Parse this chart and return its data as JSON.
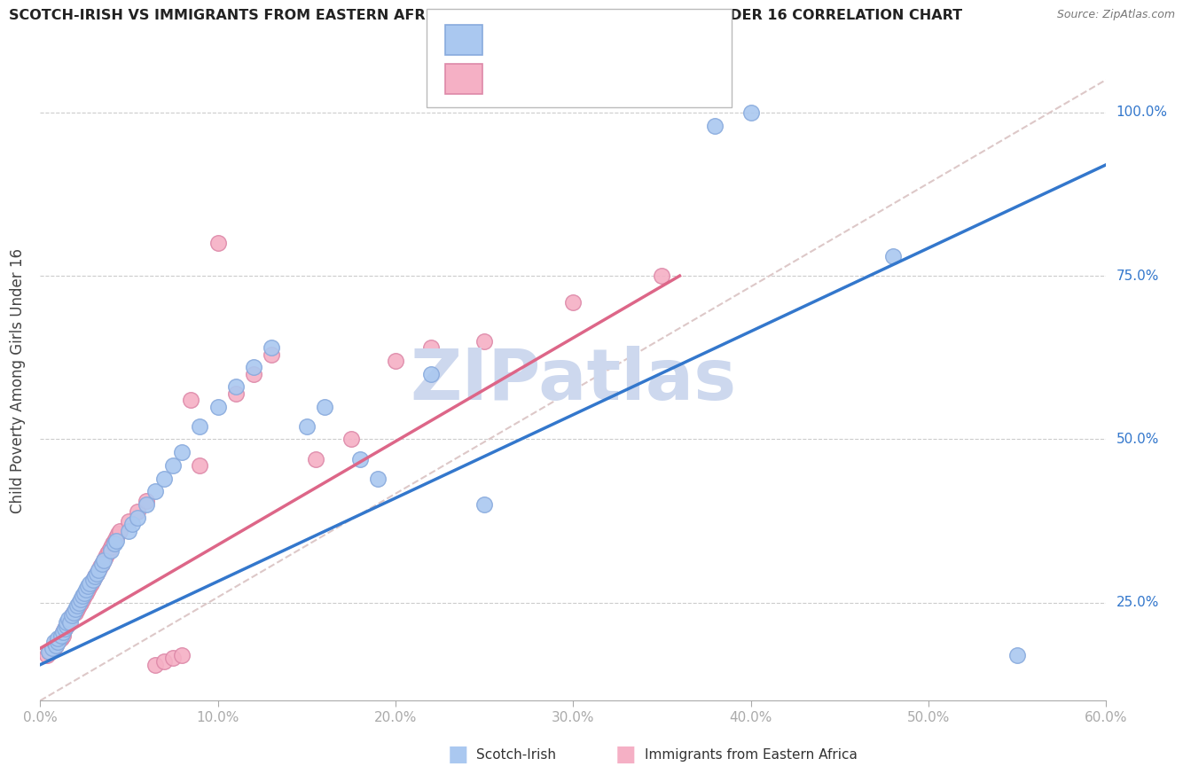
{
  "title": "SCOTCH-IRISH VS IMMIGRANTS FROM EASTERN AFRICA CHILD POVERTY AMONG GIRLS UNDER 16 CORRELATION CHART",
  "source": "Source: ZipAtlas.com",
  "ylabel": "Child Poverty Among Girls Under 16",
  "ytick_labels": [
    "100.0%",
    "75.0%",
    "50.0%",
    "25.0%"
  ],
  "ytick_values": [
    1.0,
    0.75,
    0.5,
    0.25
  ],
  "xrange": [
    0.0,
    0.6
  ],
  "yrange": [
    0.1,
    1.08
  ],
  "watermark": "ZIPatlas",
  "blue_scatter": [
    [
      0.005,
      0.175
    ],
    [
      0.007,
      0.18
    ],
    [
      0.008,
      0.19
    ],
    [
      0.009,
      0.185
    ],
    [
      0.01,
      0.19
    ],
    [
      0.01,
      0.195
    ],
    [
      0.012,
      0.2
    ],
    [
      0.013,
      0.205
    ],
    [
      0.014,
      0.21
    ],
    [
      0.015,
      0.215
    ],
    [
      0.015,
      0.22
    ],
    [
      0.016,
      0.225
    ],
    [
      0.017,
      0.22
    ],
    [
      0.018,
      0.23
    ],
    [
      0.019,
      0.235
    ],
    [
      0.02,
      0.24
    ],
    [
      0.021,
      0.245
    ],
    [
      0.022,
      0.25
    ],
    [
      0.023,
      0.255
    ],
    [
      0.024,
      0.26
    ],
    [
      0.025,
      0.265
    ],
    [
      0.026,
      0.27
    ],
    [
      0.027,
      0.275
    ],
    [
      0.028,
      0.28
    ],
    [
      0.03,
      0.285
    ],
    [
      0.031,
      0.29
    ],
    [
      0.032,
      0.295
    ],
    [
      0.033,
      0.3
    ],
    [
      0.035,
      0.31
    ],
    [
      0.036,
      0.315
    ],
    [
      0.04,
      0.33
    ],
    [
      0.042,
      0.34
    ],
    [
      0.043,
      0.345
    ],
    [
      0.05,
      0.36
    ],
    [
      0.052,
      0.37
    ],
    [
      0.055,
      0.38
    ],
    [
      0.06,
      0.4
    ],
    [
      0.065,
      0.42
    ],
    [
      0.07,
      0.44
    ],
    [
      0.075,
      0.46
    ],
    [
      0.08,
      0.48
    ],
    [
      0.09,
      0.52
    ],
    [
      0.1,
      0.55
    ],
    [
      0.11,
      0.58
    ],
    [
      0.12,
      0.61
    ],
    [
      0.13,
      0.64
    ],
    [
      0.15,
      0.52
    ],
    [
      0.16,
      0.55
    ],
    [
      0.18,
      0.47
    ],
    [
      0.19,
      0.44
    ],
    [
      0.22,
      0.6
    ],
    [
      0.25,
      0.4
    ],
    [
      0.38,
      0.98
    ],
    [
      0.4,
      1.0
    ],
    [
      0.48,
      0.78
    ],
    [
      0.55,
      0.17
    ]
  ],
  "pink_scatter": [
    [
      0.004,
      0.17
    ],
    [
      0.005,
      0.175
    ],
    [
      0.006,
      0.175
    ],
    [
      0.007,
      0.18
    ],
    [
      0.008,
      0.18
    ],
    [
      0.009,
      0.185
    ],
    [
      0.009,
      0.19
    ],
    [
      0.01,
      0.19
    ],
    [
      0.011,
      0.195
    ],
    [
      0.012,
      0.195
    ],
    [
      0.013,
      0.2
    ],
    [
      0.013,
      0.205
    ],
    [
      0.014,
      0.21
    ],
    [
      0.015,
      0.215
    ],
    [
      0.016,
      0.22
    ],
    [
      0.017,
      0.225
    ],
    [
      0.018,
      0.23
    ],
    [
      0.019,
      0.235
    ],
    [
      0.02,
      0.235
    ],
    [
      0.021,
      0.24
    ],
    [
      0.022,
      0.245
    ],
    [
      0.023,
      0.25
    ],
    [
      0.024,
      0.255
    ],
    [
      0.025,
      0.26
    ],
    [
      0.026,
      0.265
    ],
    [
      0.027,
      0.27
    ],
    [
      0.028,
      0.275
    ],
    [
      0.029,
      0.28
    ],
    [
      0.03,
      0.285
    ],
    [
      0.031,
      0.29
    ],
    [
      0.032,
      0.295
    ],
    [
      0.033,
      0.3
    ],
    [
      0.034,
      0.305
    ],
    [
      0.035,
      0.31
    ],
    [
      0.036,
      0.315
    ],
    [
      0.037,
      0.32
    ],
    [
      0.038,
      0.325
    ],
    [
      0.039,
      0.33
    ],
    [
      0.04,
      0.335
    ],
    [
      0.041,
      0.34
    ],
    [
      0.042,
      0.345
    ],
    [
      0.043,
      0.35
    ],
    [
      0.044,
      0.355
    ],
    [
      0.045,
      0.36
    ],
    [
      0.05,
      0.375
    ],
    [
      0.055,
      0.39
    ],
    [
      0.06,
      0.405
    ],
    [
      0.065,
      0.155
    ],
    [
      0.07,
      0.16
    ],
    [
      0.075,
      0.165
    ],
    [
      0.08,
      0.17
    ],
    [
      0.085,
      0.56
    ],
    [
      0.09,
      0.46
    ],
    [
      0.1,
      0.8
    ],
    [
      0.11,
      0.57
    ],
    [
      0.12,
      0.6
    ],
    [
      0.13,
      0.63
    ],
    [
      0.155,
      0.47
    ],
    [
      0.175,
      0.5
    ],
    [
      0.2,
      0.62
    ],
    [
      0.22,
      0.64
    ],
    [
      0.25,
      0.65
    ],
    [
      0.3,
      0.71
    ],
    [
      0.35,
      0.75
    ]
  ],
  "blue_line_x": [
    0.0,
    0.6
  ],
  "blue_line_y": [
    0.155,
    0.92
  ],
  "pink_line_x": [
    0.0,
    0.36
  ],
  "pink_line_y": [
    0.18,
    0.75
  ],
  "diag_line_x": [
    0.0,
    0.6
  ],
  "diag_line_y": [
    0.1,
    1.05
  ],
  "blue_color": "#aac8f0",
  "blue_edge_color": "#88aadd",
  "pink_color": "#f5b0c5",
  "pink_edge_color": "#dd88a8",
  "blue_line_color": "#3377cc",
  "pink_line_color": "#dd6688",
  "diag_color": "#ddc8c8",
  "watermark_color": "#cdd8ee",
  "title_color": "#222222",
  "axis_label_color": "#3377cc",
  "tick_color": "#3377cc",
  "legend_r_color": "#3366bb",
  "legend_n_color": "#3366bb"
}
